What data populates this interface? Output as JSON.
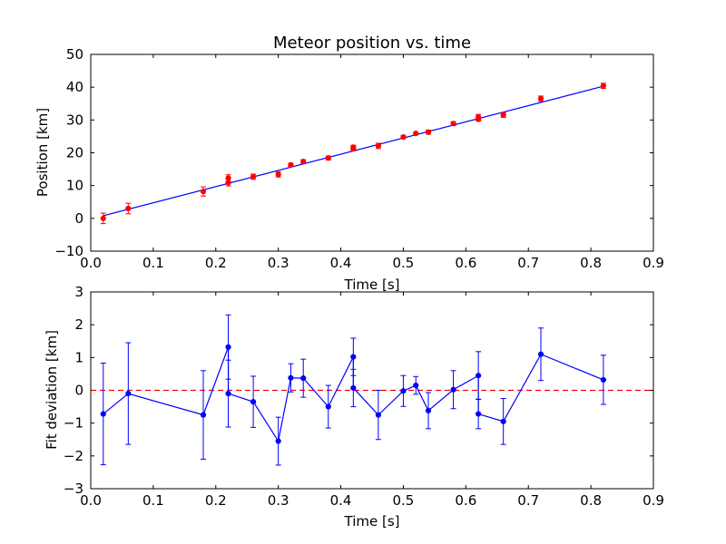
{
  "chart_data": [
    {
      "type": "scatter",
      "title": "Meteor position vs. time",
      "xlabel": "Time [s]",
      "ylabel": "Position [km]",
      "xlim": [
        0.0,
        0.9
      ],
      "ylim": [
        -10,
        50
      ],
      "xticks": [
        "0.0",
        "0.1",
        "0.2",
        "0.3",
        "0.4",
        "0.5",
        "0.6",
        "0.7",
        "0.8",
        "0.9"
      ],
      "yticks": [
        "−10",
        "0",
        "10",
        "20",
        "30",
        "40",
        "50"
      ],
      "grid": false,
      "point_color": "#ff0000",
      "fit_color": "#0000ff",
      "fit_line": {
        "x": [
          0.02,
          0.82
        ],
        "y": [
          0.8,
          40.3
        ]
      },
      "points": {
        "x": [
          0.02,
          0.06,
          0.18,
          0.22,
          0.22,
          0.26,
          0.3,
          0.32,
          0.34,
          0.38,
          0.42,
          0.42,
          0.46,
          0.5,
          0.52,
          0.54,
          0.58,
          0.62,
          0.62,
          0.66,
          0.72,
          0.82
        ],
        "y": [
          0.0,
          3.0,
          8.2,
          12.3,
          10.9,
          12.7,
          13.4,
          16.3,
          17.3,
          18.4,
          21.7,
          21.2,
          22.1,
          24.8,
          25.9,
          26.3,
          28.9,
          30.9,
          30.2,
          31.5,
          36.5,
          40.4
        ],
        "err": [
          1.6,
          1.6,
          1.4,
          1.0,
          1.0,
          0.8,
          0.8,
          0.5,
          0.6,
          0.6,
          0.6,
          0.6,
          0.8,
          0.5,
          0.3,
          0.6,
          0.6,
          0.8,
          0.5,
          0.7,
          0.8,
          0.8
        ]
      }
    },
    {
      "type": "line",
      "xlabel": "Time [s]",
      "ylabel": "Fit deviation [km]",
      "xlim": [
        0.0,
        0.9
      ],
      "ylim": [
        -3,
        3
      ],
      "xticks": [
        "0.0",
        "0.1",
        "0.2",
        "0.3",
        "0.4",
        "0.5",
        "0.6",
        "0.7",
        "0.8",
        "0.9"
      ],
      "yticks": [
        "−3",
        "−2",
        "−1",
        "0",
        "1",
        "2",
        "3"
      ],
      "grid": false,
      "line_color": "#0000ff",
      "reference_line": {
        "y": 0,
        "style": "dashed",
        "color": "#ff0000"
      },
      "series": [
        {
          "x": [
            0.02,
            0.06,
            0.18,
            0.22,
            0.22,
            0.26,
            0.3,
            0.32,
            0.34,
            0.38,
            0.42,
            0.42,
            0.46,
            0.5,
            0.52,
            0.54,
            0.58,
            0.62,
            0.62,
            0.66,
            0.72,
            0.82
          ],
          "y": [
            -0.72,
            -0.1,
            -0.75,
            1.32,
            -0.1,
            -0.35,
            -1.55,
            0.38,
            0.37,
            -0.5,
            1.02,
            0.07,
            -0.75,
            -0.02,
            0.15,
            -0.62,
            0.02,
            0.45,
            -0.72,
            -0.95,
            1.1,
            0.32
          ],
          "err": [
            1.55,
            1.55,
            1.35,
            0.98,
            1.02,
            0.78,
            0.73,
            0.43,
            0.58,
            0.65,
            0.57,
            0.57,
            0.75,
            0.47,
            0.27,
            0.55,
            0.58,
            0.73,
            0.45,
            0.7,
            0.8,
            0.75
          ]
        }
      ]
    }
  ]
}
